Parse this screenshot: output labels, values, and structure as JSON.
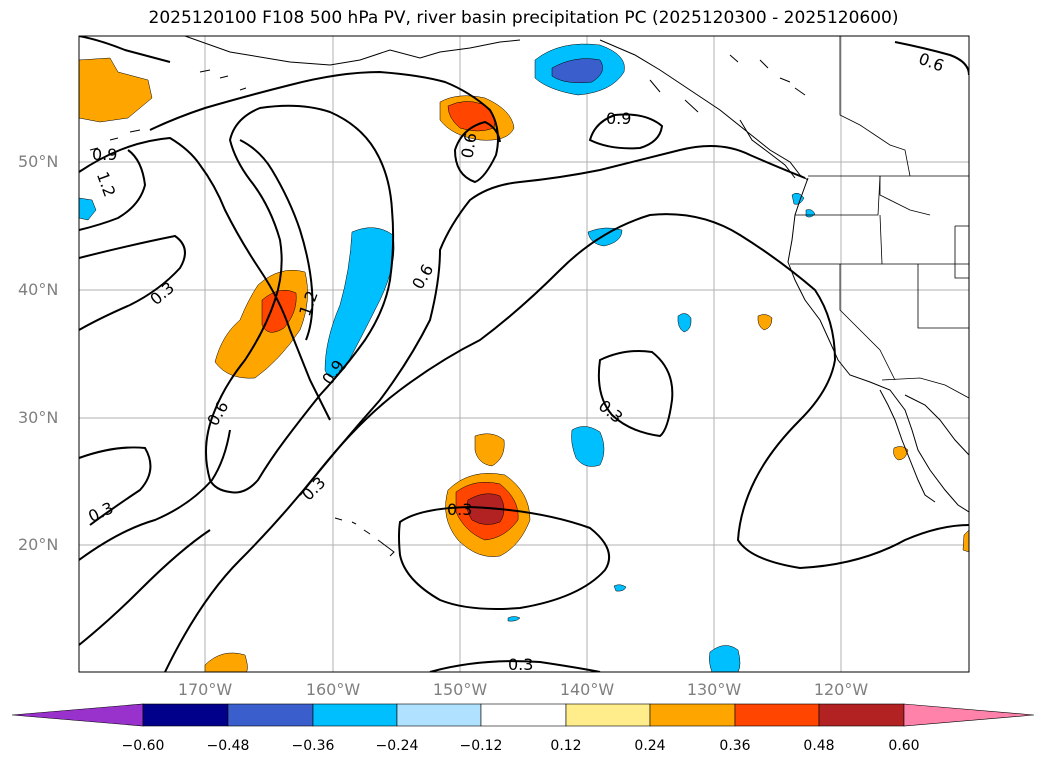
{
  "title": "2025120100 F108 500 hPa PV, river basin precipitation PC (2025120300 - 2025120600)",
  "lat_labels": [
    "50°N",
    "40°N",
    "30°N",
    "20°N"
  ],
  "lon_labels": [
    "170°W",
    "160°W",
    "150°W",
    "140°W",
    "130°W",
    "120°W"
  ],
  "contour_labels": [
    "0.9",
    "1.2",
    "0.6",
    "0.3",
    "1.2",
    "0.9",
    "0.6",
    "0.6",
    "0.3",
    "0.3",
    "0.3",
    "0.3",
    "0.9",
    "0.3",
    "0.6",
    "0.3"
  ],
  "colorbar": {
    "ticks": [
      "−0.60",
      "−0.48",
      "−0.36",
      "−0.24",
      "−0.12",
      "0.12",
      "0.24",
      "0.36",
      "0.48",
      "0.60"
    ],
    "colors": [
      "#9932cc",
      "#00008b",
      "#3a5fcd",
      "#00bfff",
      "#b0e2ff",
      "#ffffff",
      "#ffec8b",
      "#ffa500",
      "#ff4500",
      "#b22222",
      "#ff82ab"
    ]
  }
}
